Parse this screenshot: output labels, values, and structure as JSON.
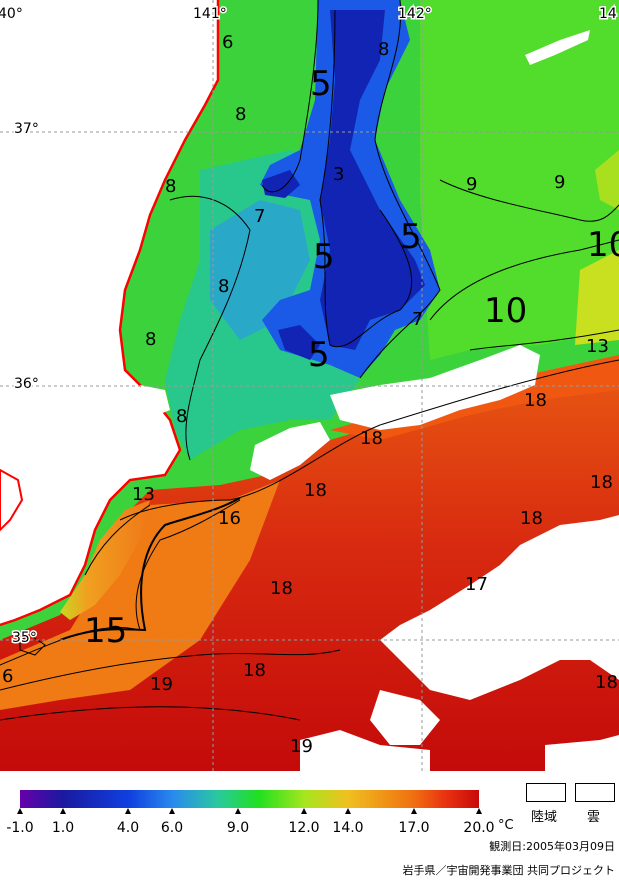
{
  "grid_labels": {
    "lon_140": "40°",
    "lon_141": "141°",
    "lon_142": "142°",
    "lon_143": "14",
    "lat_37": "37°",
    "lat_36": "36°",
    "lat_35": "35°"
  },
  "isotherm_labels": [
    {
      "text": "6",
      "size": "small"
    },
    {
      "text": "8",
      "size": "small"
    },
    {
      "text": "5",
      "size": "large"
    },
    {
      "text": "8",
      "size": "small"
    },
    {
      "text": "8",
      "size": "small"
    },
    {
      "text": "3",
      "size": "small"
    },
    {
      "text": "9",
      "size": "small"
    },
    {
      "text": "9",
      "size": "small"
    },
    {
      "text": "7",
      "size": "small"
    },
    {
      "text": "5",
      "size": "large"
    },
    {
      "text": "5",
      "size": "large"
    },
    {
      "text": "10",
      "size": "large"
    },
    {
      "text": "8",
      "size": "small"
    },
    {
      "text": "10",
      "size": "large"
    },
    {
      "text": "8",
      "size": "small"
    },
    {
      "text": "7",
      "size": "small"
    },
    {
      "text": "5",
      "size": "large"
    },
    {
      "text": "13",
      "size": "small"
    },
    {
      "text": "8",
      "size": "small"
    },
    {
      "text": "18",
      "size": "small"
    },
    {
      "text": "18",
      "size": "small"
    },
    {
      "text": "13",
      "size": "small"
    },
    {
      "text": "18",
      "size": "small"
    },
    {
      "text": "16",
      "size": "small"
    },
    {
      "text": "18",
      "size": "small"
    },
    {
      "text": "18",
      "size": "small"
    },
    {
      "text": "18",
      "size": "small"
    },
    {
      "text": "17",
      "size": "small"
    },
    {
      "text": "15",
      "size": "large"
    },
    {
      "text": "18",
      "size": "small"
    },
    {
      "text": "19",
      "size": "small"
    },
    {
      "text": "18",
      "size": "small"
    },
    {
      "text": "6",
      "size": "small"
    },
    {
      "text": "19",
      "size": "small"
    }
  ],
  "legend": {
    "ticks": [
      "-1.0",
      "1.0",
      "4.0",
      "6.0",
      "9.0",
      "12.0",
      "14.0",
      "17.0",
      "20.0"
    ],
    "unit": "°C",
    "land_label": "陸域",
    "cloud_label": "雲",
    "observation_date": "観測日:2005年03月09日",
    "credit": "岩手県／宇宙開発事業団 共同プロジェクト"
  },
  "colors": {
    "land": "#ffffff",
    "coastline": "#ff0000",
    "cloud": "#ffffff",
    "scale": [
      "#6600aa",
      "#1a1aa0",
      "#1040e0",
      "#2a8aee",
      "#2ac8a0",
      "#20e020",
      "#a6e61e",
      "#f0c020",
      "#f07010",
      "#e83010",
      "#c80a0a"
    ]
  }
}
